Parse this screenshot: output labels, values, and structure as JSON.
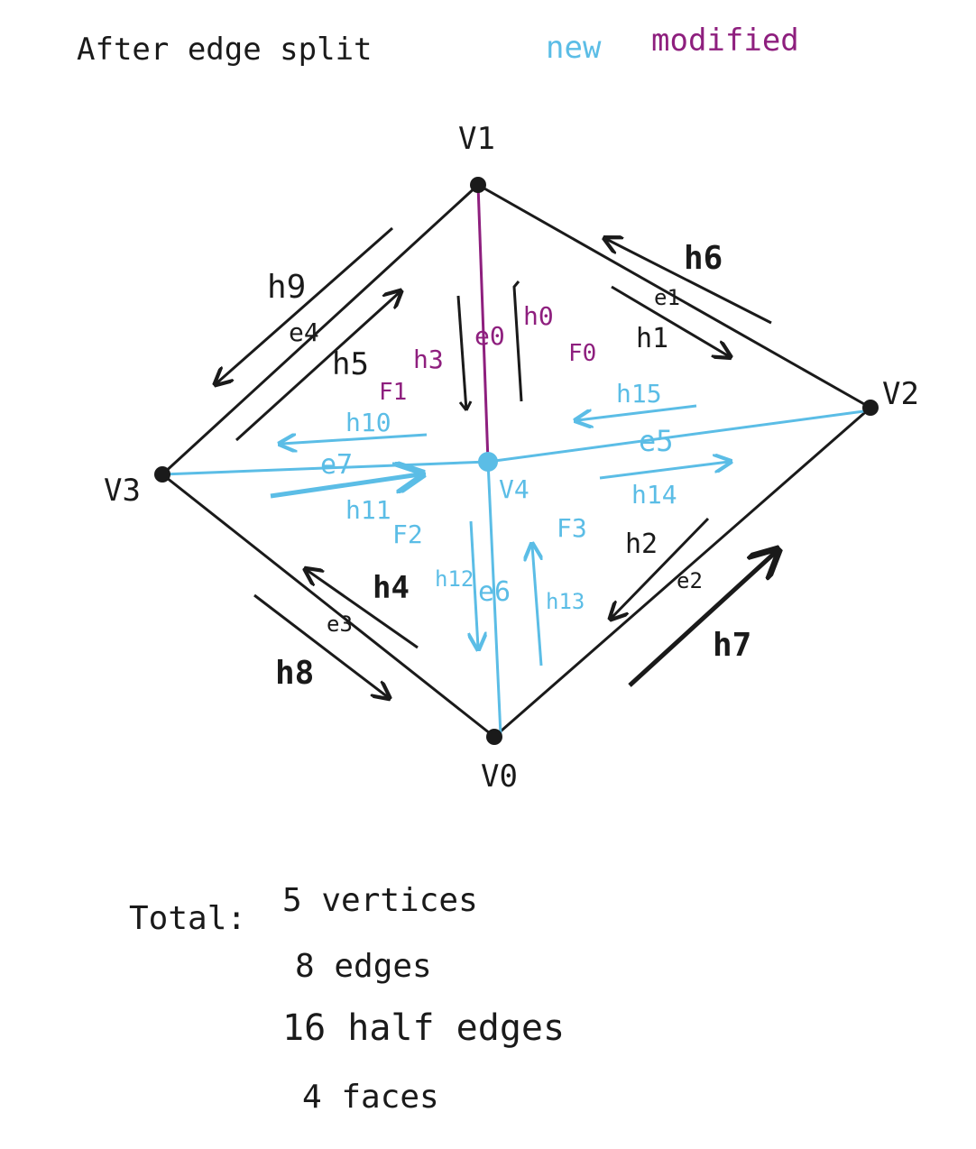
{
  "title": "After edge split",
  "legend": {
    "new": "new",
    "modified": "modified"
  },
  "colors": {
    "ink": "#1a1a1a",
    "new": "#5bbde6",
    "modified": "#8e1f7e",
    "background": "#ffffff"
  },
  "vertices": {
    "v0": "V0",
    "v1": "V1",
    "v2": "V2",
    "v3": "V3",
    "v4": "V4"
  },
  "edges": {
    "e0": "e0",
    "e1": "e1",
    "e2": "e2",
    "e3": "e3",
    "e4": "e4",
    "e5": "e5",
    "e6": "e6",
    "e7": "e7"
  },
  "halfedges": {
    "h0": "h0",
    "h1": "h1",
    "h2": "h2",
    "h3": "h3",
    "h4": "h4",
    "h5": "h5",
    "h6": "h6",
    "h7": "h7",
    "h8": "h8",
    "h9": "h9",
    "h10": "h10",
    "h11": "h11",
    "h12": "h12",
    "h13": "h13",
    "h14": "h14",
    "h15": "h15"
  },
  "faces": {
    "f0": "F0",
    "f1": "F1",
    "f2": "F2",
    "f3": "F3"
  },
  "totals": {
    "label": "Total:",
    "vertices": "5 vertices",
    "edges": "8 edges",
    "half_edges": "16 half edges",
    "faces": "4 faces"
  }
}
